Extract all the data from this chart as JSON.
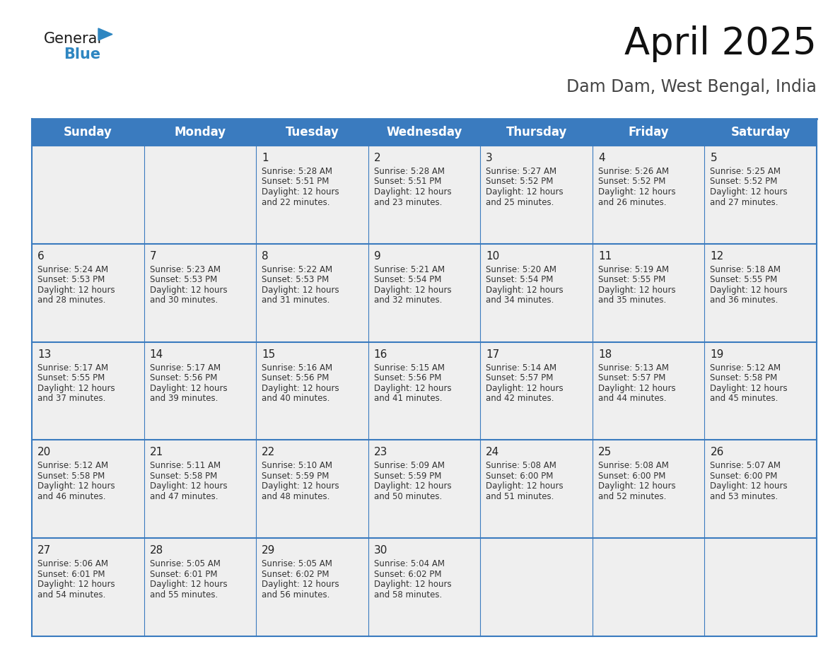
{
  "title": "April 2025",
  "subtitle": "Dam Dam, West Bengal, India",
  "header_bg": "#3a7bbf",
  "header_text_color": "#ffffff",
  "cell_bg_gray": "#efefef",
  "cell_bg_white": "#ffffff",
  "border_color": "#3a7bbf",
  "row_border_color": "#3a7bbf",
  "days_of_week": [
    "Sunday",
    "Monday",
    "Tuesday",
    "Wednesday",
    "Thursday",
    "Friday",
    "Saturday"
  ],
  "weeks": [
    [
      {
        "day": "",
        "sunrise": "",
        "sunset": "",
        "daylight1": "",
        "daylight2": ""
      },
      {
        "day": "",
        "sunrise": "",
        "sunset": "",
        "daylight1": "",
        "daylight2": ""
      },
      {
        "day": "1",
        "sunrise": "Sunrise: 5:28 AM",
        "sunset": "Sunset: 5:51 PM",
        "daylight1": "Daylight: 12 hours",
        "daylight2": "and 22 minutes."
      },
      {
        "day": "2",
        "sunrise": "Sunrise: 5:28 AM",
        "sunset": "Sunset: 5:51 PM",
        "daylight1": "Daylight: 12 hours",
        "daylight2": "and 23 minutes."
      },
      {
        "day": "3",
        "sunrise": "Sunrise: 5:27 AM",
        "sunset": "Sunset: 5:52 PM",
        "daylight1": "Daylight: 12 hours",
        "daylight2": "and 25 minutes."
      },
      {
        "day": "4",
        "sunrise": "Sunrise: 5:26 AM",
        "sunset": "Sunset: 5:52 PM",
        "daylight1": "Daylight: 12 hours",
        "daylight2": "and 26 minutes."
      },
      {
        "day": "5",
        "sunrise": "Sunrise: 5:25 AM",
        "sunset": "Sunset: 5:52 PM",
        "daylight1": "Daylight: 12 hours",
        "daylight2": "and 27 minutes."
      }
    ],
    [
      {
        "day": "6",
        "sunrise": "Sunrise: 5:24 AM",
        "sunset": "Sunset: 5:53 PM",
        "daylight1": "Daylight: 12 hours",
        "daylight2": "and 28 minutes."
      },
      {
        "day": "7",
        "sunrise": "Sunrise: 5:23 AM",
        "sunset": "Sunset: 5:53 PM",
        "daylight1": "Daylight: 12 hours",
        "daylight2": "and 30 minutes."
      },
      {
        "day": "8",
        "sunrise": "Sunrise: 5:22 AM",
        "sunset": "Sunset: 5:53 PM",
        "daylight1": "Daylight: 12 hours",
        "daylight2": "and 31 minutes."
      },
      {
        "day": "9",
        "sunrise": "Sunrise: 5:21 AM",
        "sunset": "Sunset: 5:54 PM",
        "daylight1": "Daylight: 12 hours",
        "daylight2": "and 32 minutes."
      },
      {
        "day": "10",
        "sunrise": "Sunrise: 5:20 AM",
        "sunset": "Sunset: 5:54 PM",
        "daylight1": "Daylight: 12 hours",
        "daylight2": "and 34 minutes."
      },
      {
        "day": "11",
        "sunrise": "Sunrise: 5:19 AM",
        "sunset": "Sunset: 5:55 PM",
        "daylight1": "Daylight: 12 hours",
        "daylight2": "and 35 minutes."
      },
      {
        "day": "12",
        "sunrise": "Sunrise: 5:18 AM",
        "sunset": "Sunset: 5:55 PM",
        "daylight1": "Daylight: 12 hours",
        "daylight2": "and 36 minutes."
      }
    ],
    [
      {
        "day": "13",
        "sunrise": "Sunrise: 5:17 AM",
        "sunset": "Sunset: 5:55 PM",
        "daylight1": "Daylight: 12 hours",
        "daylight2": "and 37 minutes."
      },
      {
        "day": "14",
        "sunrise": "Sunrise: 5:17 AM",
        "sunset": "Sunset: 5:56 PM",
        "daylight1": "Daylight: 12 hours",
        "daylight2": "and 39 minutes."
      },
      {
        "day": "15",
        "sunrise": "Sunrise: 5:16 AM",
        "sunset": "Sunset: 5:56 PM",
        "daylight1": "Daylight: 12 hours",
        "daylight2": "and 40 minutes."
      },
      {
        "day": "16",
        "sunrise": "Sunrise: 5:15 AM",
        "sunset": "Sunset: 5:56 PM",
        "daylight1": "Daylight: 12 hours",
        "daylight2": "and 41 minutes."
      },
      {
        "day": "17",
        "sunrise": "Sunrise: 5:14 AM",
        "sunset": "Sunset: 5:57 PM",
        "daylight1": "Daylight: 12 hours",
        "daylight2": "and 42 minutes."
      },
      {
        "day": "18",
        "sunrise": "Sunrise: 5:13 AM",
        "sunset": "Sunset: 5:57 PM",
        "daylight1": "Daylight: 12 hours",
        "daylight2": "and 44 minutes."
      },
      {
        "day": "19",
        "sunrise": "Sunrise: 5:12 AM",
        "sunset": "Sunset: 5:58 PM",
        "daylight1": "Daylight: 12 hours",
        "daylight2": "and 45 minutes."
      }
    ],
    [
      {
        "day": "20",
        "sunrise": "Sunrise: 5:12 AM",
        "sunset": "Sunset: 5:58 PM",
        "daylight1": "Daylight: 12 hours",
        "daylight2": "and 46 minutes."
      },
      {
        "day": "21",
        "sunrise": "Sunrise: 5:11 AM",
        "sunset": "Sunset: 5:58 PM",
        "daylight1": "Daylight: 12 hours",
        "daylight2": "and 47 minutes."
      },
      {
        "day": "22",
        "sunrise": "Sunrise: 5:10 AM",
        "sunset": "Sunset: 5:59 PM",
        "daylight1": "Daylight: 12 hours",
        "daylight2": "and 48 minutes."
      },
      {
        "day": "23",
        "sunrise": "Sunrise: 5:09 AM",
        "sunset": "Sunset: 5:59 PM",
        "daylight1": "Daylight: 12 hours",
        "daylight2": "and 50 minutes."
      },
      {
        "day": "24",
        "sunrise": "Sunrise: 5:08 AM",
        "sunset": "Sunset: 6:00 PM",
        "daylight1": "Daylight: 12 hours",
        "daylight2": "and 51 minutes."
      },
      {
        "day": "25",
        "sunrise": "Sunrise: 5:08 AM",
        "sunset": "Sunset: 6:00 PM",
        "daylight1": "Daylight: 12 hours",
        "daylight2": "and 52 minutes."
      },
      {
        "day": "26",
        "sunrise": "Sunrise: 5:07 AM",
        "sunset": "Sunset: 6:00 PM",
        "daylight1": "Daylight: 12 hours",
        "daylight2": "and 53 minutes."
      }
    ],
    [
      {
        "day": "27",
        "sunrise": "Sunrise: 5:06 AM",
        "sunset": "Sunset: 6:01 PM",
        "daylight1": "Daylight: 12 hours",
        "daylight2": "and 54 minutes."
      },
      {
        "day": "28",
        "sunrise": "Sunrise: 5:05 AM",
        "sunset": "Sunset: 6:01 PM",
        "daylight1": "Daylight: 12 hours",
        "daylight2": "and 55 minutes."
      },
      {
        "day": "29",
        "sunrise": "Sunrise: 5:05 AM",
        "sunset": "Sunset: 6:02 PM",
        "daylight1": "Daylight: 12 hours",
        "daylight2": "and 56 minutes."
      },
      {
        "day": "30",
        "sunrise": "Sunrise: 5:04 AM",
        "sunset": "Sunset: 6:02 PM",
        "daylight1": "Daylight: 12 hours",
        "daylight2": "and 58 minutes."
      },
      {
        "day": "",
        "sunrise": "",
        "sunset": "",
        "daylight1": "",
        "daylight2": ""
      },
      {
        "day": "",
        "sunrise": "",
        "sunset": "",
        "daylight1": "",
        "daylight2": ""
      },
      {
        "day": "",
        "sunrise": "",
        "sunset": "",
        "daylight1": "",
        "daylight2": ""
      }
    ]
  ],
  "logo_general_color": "#1a1a1a",
  "logo_blue_color": "#2e86c1",
  "logo_triangle_color": "#2e86c1",
  "title_fontsize": 38,
  "subtitle_fontsize": 17,
  "header_fontsize": 12,
  "day_num_fontsize": 11,
  "cell_text_fontsize": 8.5
}
